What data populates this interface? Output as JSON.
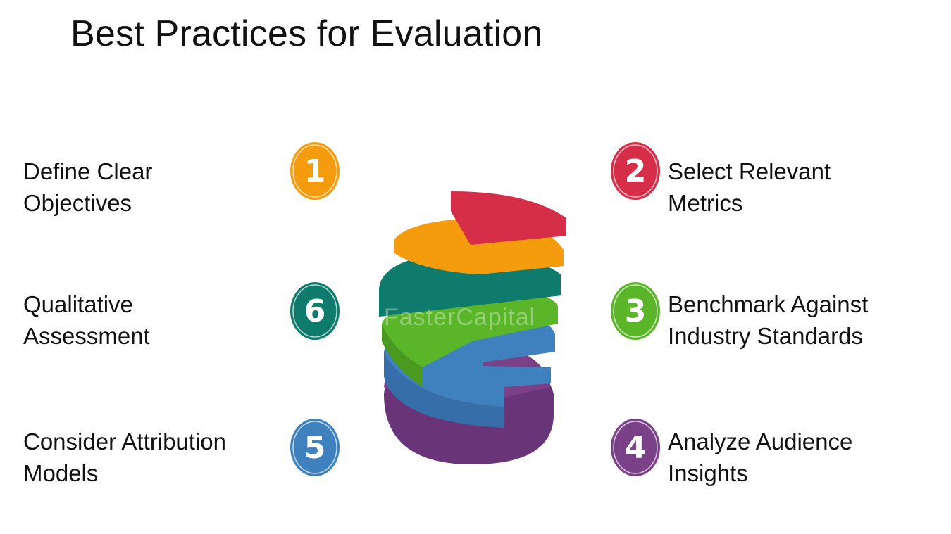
{
  "title": "Best Practices for Evaluation",
  "watermark": "FasterCapital",
  "items": [
    {
      "number": "1",
      "line1": "Define Clear",
      "line2": "Objectives",
      "color": "#f59c0e"
    },
    {
      "number": "2",
      "line1": "Select Relevant",
      "line2": "Metrics",
      "color": "#d62d48"
    },
    {
      "number": "3",
      "line1": "Benchmark Against",
      "line2": "Industry Standards",
      "color": "#5bb529"
    },
    {
      "number": "4",
      "line1": "Analyze Audience",
      "line2": "Insights",
      "color": "#7a4189"
    },
    {
      "number": "5",
      "line1": "Consider Attribution",
      "line2": "Models",
      "color": "#3f80bf"
    },
    {
      "number": "6",
      "line1": "Qualitative",
      "line2": "Assessment",
      "color": "#0f7b6c"
    }
  ]
}
